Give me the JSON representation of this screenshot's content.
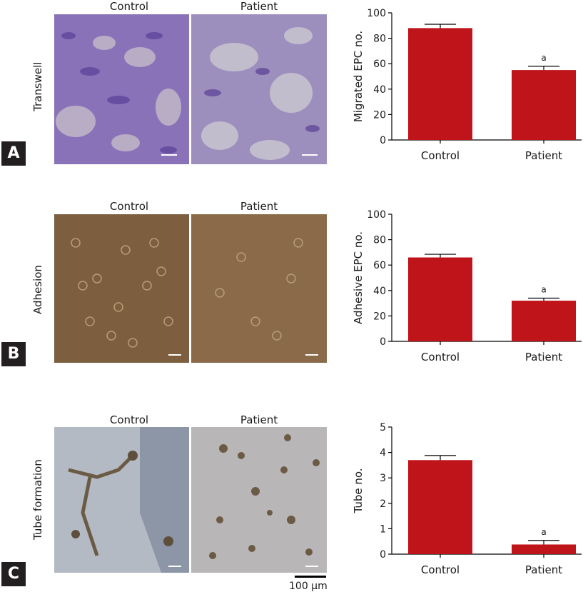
{
  "image_labels": {
    "control": "Control",
    "patient": "Patient"
  },
  "panels": [
    {
      "letter": "A",
      "row_label": "Transwell"
    },
    {
      "letter": "B",
      "row_label": "Adhesion"
    },
    {
      "letter": "C",
      "row_label": "Tube formation"
    }
  ],
  "scale_bar": {
    "label": "100 μm"
  },
  "colors": {
    "bar": "#c0141b",
    "transwell": "#8a72b8",
    "adhesion": "#7d5f3f",
    "tube": "#b4bac4"
  },
  "chart_data": [
    {
      "type": "bar",
      "categories": [
        "Control",
        "Patient"
      ],
      "values": [
        88,
        55
      ],
      "errors": [
        3,
        3
      ],
      "annotations": [
        "",
        "a"
      ],
      "ylabel": "Migrated EPC no.",
      "ylim": [
        0,
        100
      ],
      "yticks": [
        0,
        20,
        40,
        60,
        80,
        100
      ]
    },
    {
      "type": "bar",
      "categories": [
        "Control",
        "Patient"
      ],
      "values": [
        66,
        32
      ],
      "errors": [
        2.5,
        2
      ],
      "annotations": [
        "",
        "a"
      ],
      "ylabel": "Adhesive EPC no.",
      "ylim": [
        0,
        100
      ],
      "yticks": [
        0,
        20,
        40,
        60,
        80,
        100
      ]
    },
    {
      "type": "bar",
      "categories": [
        "Control",
        "Patient"
      ],
      "values": [
        3.7,
        0.38
      ],
      "errors": [
        0.18,
        0.16
      ],
      "annotations": [
        "",
        "a"
      ],
      "ylabel": "Tube no.",
      "ylim": [
        0,
        5
      ],
      "yticks": [
        0,
        1,
        2,
        3,
        4,
        5
      ]
    }
  ]
}
